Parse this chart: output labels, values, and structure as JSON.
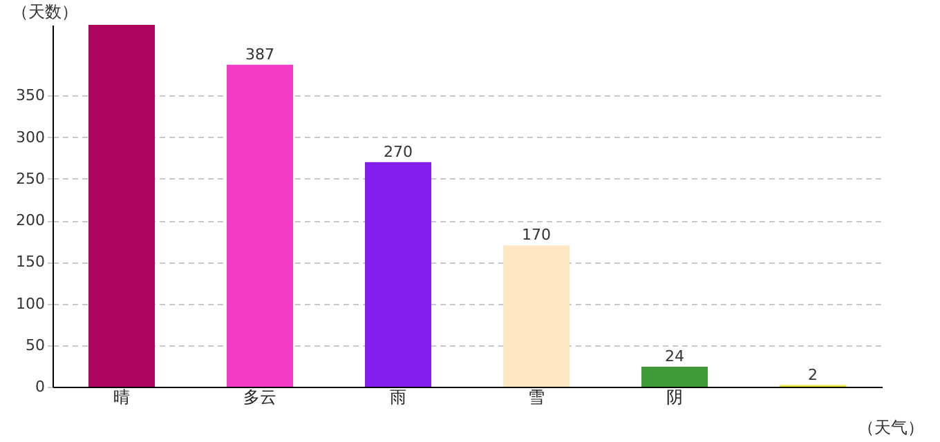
{
  "chart_data": {
    "type": "bar",
    "xlabel": "（天气）",
    "ylabel": "（天数）",
    "categories": [
      "晴",
      "多云",
      "雨",
      "雪",
      "阴",
      null
    ],
    "values": [
      435,
      387,
      270,
      170,
      24,
      2
    ],
    "colors": [
      "#ae0660",
      "#f23ac6",
      "#821ef0",
      "#fde8c1",
      "#3f9a3a",
      "#e3e83a"
    ],
    "value_labels": [
      null,
      "387",
      "270",
      "170",
      "24",
      "2"
    ],
    "ylim": [
      0,
      435
    ],
    "yticks": [
      0,
      50,
      100,
      150,
      200,
      250,
      300,
      350
    ],
    "grid": "y"
  }
}
